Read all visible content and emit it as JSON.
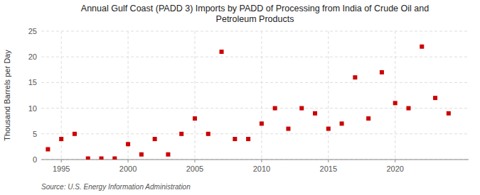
{
  "chart_data": {
    "type": "scatter",
    "title": "Annual Gulf Coast (PADD 3) Imports by PADD of Processing from India of Crude Oil and\nPetroleum Products",
    "y_label": "Thousand Barrels per Day",
    "annotations": [
      "Source: U.S. Energy Information Administration"
    ],
    "x": [
      1994,
      1995,
      1996,
      1997,
      1998,
      1999,
      2000,
      2001,
      2002,
      2003,
      2004,
      2005,
      2006,
      2007,
      2008,
      2009,
      2010,
      2011,
      2012,
      2013,
      2014,
      2015,
      2016,
      2017,
      2018,
      2019,
      2020,
      2021,
      2022,
      2023,
      2024
    ],
    "values": [
      2,
      4,
      5,
      0.2,
      0.2,
      0.2,
      3,
      1,
      4,
      1,
      5,
      8,
      5,
      21,
      4,
      4,
      7,
      10,
      6,
      10,
      9,
      6,
      7,
      16,
      8,
      17,
      11,
      10,
      22,
      12,
      9
    ],
    "color": "#cc0000",
    "marker": "square",
    "xlim": [
      1993.5,
      2025.5
    ],
    "ylim": [
      0,
      25
    ],
    "xticks": [
      1995,
      2000,
      2005,
      2010,
      2015,
      2020
    ],
    "yticks": [
      0,
      5,
      10,
      15,
      20,
      25
    ],
    "grid": true
  }
}
